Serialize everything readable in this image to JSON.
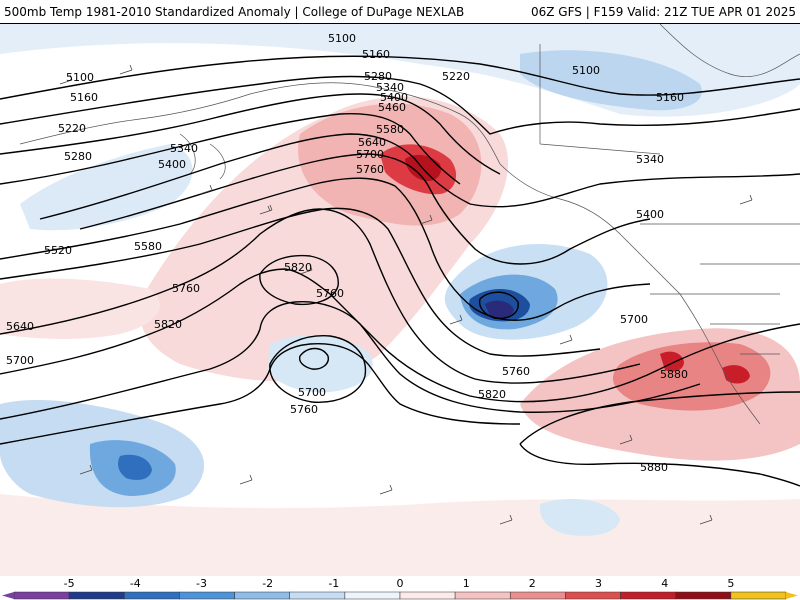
{
  "title": {
    "left": "500mb Temp 1981-2010 Standardized Anomaly | College of DuPage NEXLAB",
    "right": "06Z GFS | F159 Valid: 21Z TUE APR 01 2025"
  },
  "contour_labels": [
    "5100",
    "5160",
    "5220",
    "5280",
    "5340",
    "5400",
    "5460",
    "5520",
    "5580",
    "5640",
    "5700",
    "5760",
    "5820",
    "5880"
  ],
  "legend": {
    "ticks": [
      "-5",
      "-4",
      "-3",
      "-2",
      "-1",
      "0",
      "1",
      "2",
      "3",
      "4",
      "5"
    ],
    "colors": [
      "#7b3fa0",
      "#1f3b8a",
      "#2f6fbd",
      "#4d93d8",
      "#8fbce8",
      "#c6dcf2",
      "#eef4fb",
      "#fbeaea",
      "#f5c2c2",
      "#ea8f8f",
      "#dc4f4f",
      "#c21d2a",
      "#8e0f17",
      "#f2c21a"
    ]
  },
  "colors": {
    "warm_light": "#f6cfcf",
    "warm_mid": "#ee9c9c",
    "warm_strong": "#d9303a",
    "cool_light": "#c9dff3",
    "cool_mid": "#6fa8df",
    "cool_strong": "#1e4f9e",
    "cool_core": "#2a2a7a"
  }
}
